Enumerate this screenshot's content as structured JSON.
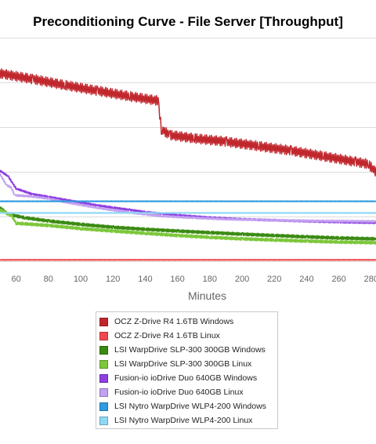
{
  "chart_data": {
    "type": "line",
    "title": "Preconditioning Curve - File Server [Throughput]",
    "xlabel": "Minutes",
    "ylabel": "",
    "xlim": [
      50,
      283
    ],
    "ylim": [
      0,
      100
    ],
    "grid": true,
    "legend_position": "bottom",
    "x_ticks": [
      "60",
      "80",
      "100",
      "120",
      "140",
      "160",
      "180",
      "200",
      "220",
      "240",
      "260",
      "280"
    ],
    "series": [
      {
        "name": "OCZ Z-Drive R4 1.6TB Windows",
        "color": "#c0272d",
        "points": [
          [
            50,
            84.0
          ],
          [
            70,
            81.5
          ],
          [
            90,
            78.8
          ],
          [
            110,
            76.3
          ],
          [
            130,
            73.8
          ],
          [
            148,
            71.8
          ],
          [
            150,
            59.0
          ],
          [
            155,
            56.5
          ],
          [
            170,
            55.0
          ],
          [
            190,
            53.5
          ],
          [
            210,
            51.5
          ],
          [
            230,
            49.5
          ],
          [
            250,
            47.0
          ],
          [
            270,
            44.5
          ],
          [
            278,
            43.5
          ],
          [
            283,
            40.0
          ]
        ]
      },
      {
        "name": "OCZ Z-Drive R4 1.6TB Linux",
        "color": "#f0484d",
        "points": [
          [
            50,
            0.6
          ],
          [
            283,
            0.6
          ]
        ]
      },
      {
        "name": "LSI WarpDrive SLP-300 300GB Windows",
        "color": "#3a8a12",
        "points": [
          [
            50,
            24.0
          ],
          [
            55,
            21.0
          ],
          [
            65,
            19.5
          ],
          [
            80,
            18.0
          ],
          [
            100,
            16.5
          ],
          [
            120,
            15.2
          ],
          [
            140,
            14.3
          ],
          [
            160,
            13.5
          ],
          [
            180,
            12.8
          ],
          [
            200,
            12.1
          ],
          [
            220,
            11.5
          ],
          [
            240,
            10.9
          ],
          [
            260,
            10.4
          ],
          [
            283,
            10.0
          ]
        ]
      },
      {
        "name": "LSI WarpDrive SLP-300 300GB Linux",
        "color": "#7cc73a",
        "points": [
          [
            50,
            23.0
          ],
          [
            57,
            20.5
          ],
          [
            60,
            17.0
          ],
          [
            80,
            16.0
          ],
          [
            100,
            14.6
          ],
          [
            120,
            13.5
          ],
          [
            140,
            12.5
          ],
          [
            160,
            11.5
          ],
          [
            180,
            10.7
          ],
          [
            200,
            10.0
          ],
          [
            220,
            9.5
          ],
          [
            240,
            9.0
          ],
          [
            260,
            8.6
          ],
          [
            283,
            8.3
          ]
        ]
      },
      {
        "name": "Fusion-io ioDrive Duo 640GB Windows",
        "color": "#8d3fe0",
        "points": [
          [
            50,
            40.5
          ],
          [
            55,
            38.0
          ],
          [
            60,
            32.5
          ],
          [
            70,
            30.0
          ],
          [
            80,
            28.8
          ],
          [
            90,
            27.5
          ],
          [
            100,
            26.3
          ],
          [
            110,
            25.0
          ],
          [
            120,
            24.0
          ],
          [
            130,
            23.0
          ],
          [
            140,
            22.0
          ],
          [
            150,
            21.3
          ],
          [
            160,
            20.6
          ],
          [
            180,
            19.5
          ],
          [
            200,
            18.8
          ],
          [
            220,
            18.3
          ],
          [
            240,
            17.9
          ],
          [
            260,
            17.5
          ],
          [
            283,
            17.2
          ]
        ]
      },
      {
        "name": "Fusion-io ioDrive Duo 640GB Linux",
        "color": "#c3a0f0",
        "points": [
          [
            50,
            39.0
          ],
          [
            54,
            34.0
          ],
          [
            57,
            33.0
          ],
          [
            59,
            29.5
          ],
          [
            70,
            29.0
          ],
          [
            80,
            28.0
          ],
          [
            90,
            26.5
          ],
          [
            100,
            25.2
          ],
          [
            110,
            24.0
          ],
          [
            120,
            22.8
          ],
          [
            130,
            21.8
          ],
          [
            140,
            21.0
          ],
          [
            150,
            20.2
          ],
          [
            170,
            19.4
          ],
          [
            190,
            18.8
          ],
          [
            210,
            18.5
          ],
          [
            230,
            18.2
          ],
          [
            250,
            18.0
          ],
          [
            283,
            17.8
          ]
        ]
      },
      {
        "name": "LSI Nytro WarpDrive WLP4-200 Windows",
        "color": "#2f9be0",
        "points": [
          [
            50,
            26.8
          ],
          [
            283,
            26.8
          ]
        ]
      },
      {
        "name": "LSI Nytro WarpDrive WLP4-200 Linux",
        "color": "#8fd8f5",
        "points": [
          [
            50,
            21.6
          ],
          [
            283,
            21.6
          ]
        ]
      }
    ]
  }
}
